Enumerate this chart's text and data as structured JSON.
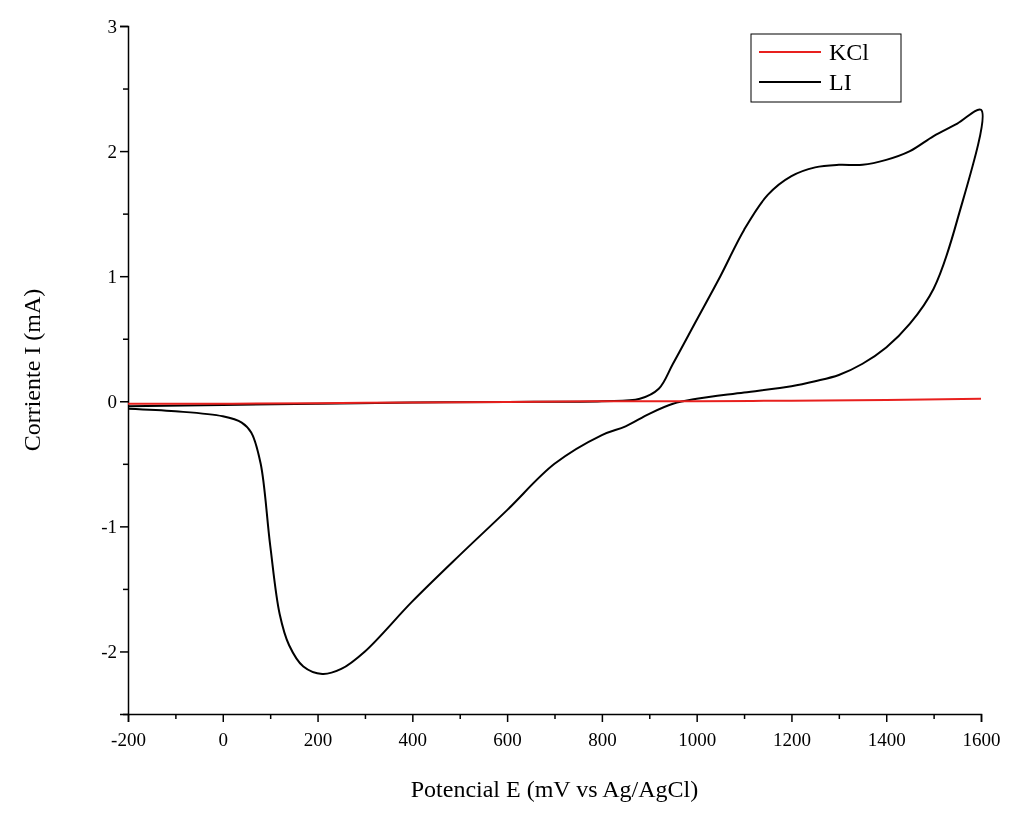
{
  "chart_data": {
    "type": "line",
    "xlabel": "Potencial E (mV vs Ag/AgCl)",
    "ylabel": "Corriente I (mA)",
    "xlim": [
      -200,
      1600
    ],
    "ylim": [
      -2.5,
      3
    ],
    "xticks": [
      -200,
      {
        "value": -100,
        "label": null
      },
      0,
      {
        "value": 100,
        "label": null
      },
      200,
      {
        "value": 300,
        "label": null
      },
      400,
      {
        "value": 500,
        "label": null
      },
      600,
      {
        "value": 700,
        "label": null
      },
      800,
      {
        "value": 900,
        "label": null
      },
      1000,
      {
        "value": 1100,
        "label": null
      },
      1200,
      {
        "value": 1300,
        "label": null
      },
      1400,
      {
        "value": 1500,
        "label": null
      },
      1600
    ],
    "yticks": [
      {
        "value": -2.5,
        "label": null
      },
      -2,
      {
        "value": -1.5,
        "label": null
      },
      -1,
      {
        "value": -0.5,
        "label": null
      },
      0,
      {
        "value": 0.5,
        "label": null
      },
      1,
      {
        "value": 1.5,
        "label": null
      },
      2,
      {
        "value": 2.5,
        "label": null
      },
      3
    ],
    "grid": false,
    "legend": "top right",
    "marker": "none",
    "line_style": "solid",
    "series": [
      {
        "name": "KCl",
        "color": "#e8201e",
        "x": [
          -200,
          0,
          200,
          400,
          600,
          800,
          1000,
          1200,
          1400,
          1600
        ],
        "values": [
          -0.02,
          -0.02,
          -0.015,
          -0.01,
          -0.005,
          0,
          0,
          0.005,
          0.01,
          0.02
        ]
      },
      {
        "name": "LI",
        "color": "#000000",
        "x": [
          -200,
          0,
          200,
          400,
          600,
          800,
          880,
          920,
          950,
          1000,
          1050,
          1100,
          1150,
          1200,
          1250,
          1300,
          1350,
          1400,
          1450,
          1500,
          1550,
          1600,
          1550,
          1500,
          1450,
          1400,
          1350,
          1300,
          1250,
          1200,
          1100,
          1000,
          950,
          900,
          850,
          800,
          700,
          600,
          500,
          400,
          300,
          250,
          210,
          170,
          140,
          120,
          100,
          80,
          60,
          40,
          0,
          -100,
          -200
        ],
        "values": [
          -0.04,
          -0.03,
          -0.02,
          -0.01,
          -0.005,
          0,
          0.02,
          0.1,
          0.3,
          0.65,
          1.0,
          1.37,
          1.65,
          1.8,
          1.87,
          1.89,
          1.89,
          1.93,
          2.0,
          2.12,
          2.22,
          2.33,
          1.45,
          0.9,
          0.62,
          0.43,
          0.3,
          0.21,
          0.16,
          0.12,
          0.07,
          0.02,
          -0.02,
          -0.1,
          -0.2,
          -0.27,
          -0.5,
          -0.87,
          -1.23,
          -1.6,
          -2.0,
          -2.14,
          -2.18,
          -2.12,
          -1.95,
          -1.7,
          -1.15,
          -0.5,
          -0.25,
          -0.17,
          -0.12,
          -0.08,
          -0.06
        ]
      }
    ]
  }
}
